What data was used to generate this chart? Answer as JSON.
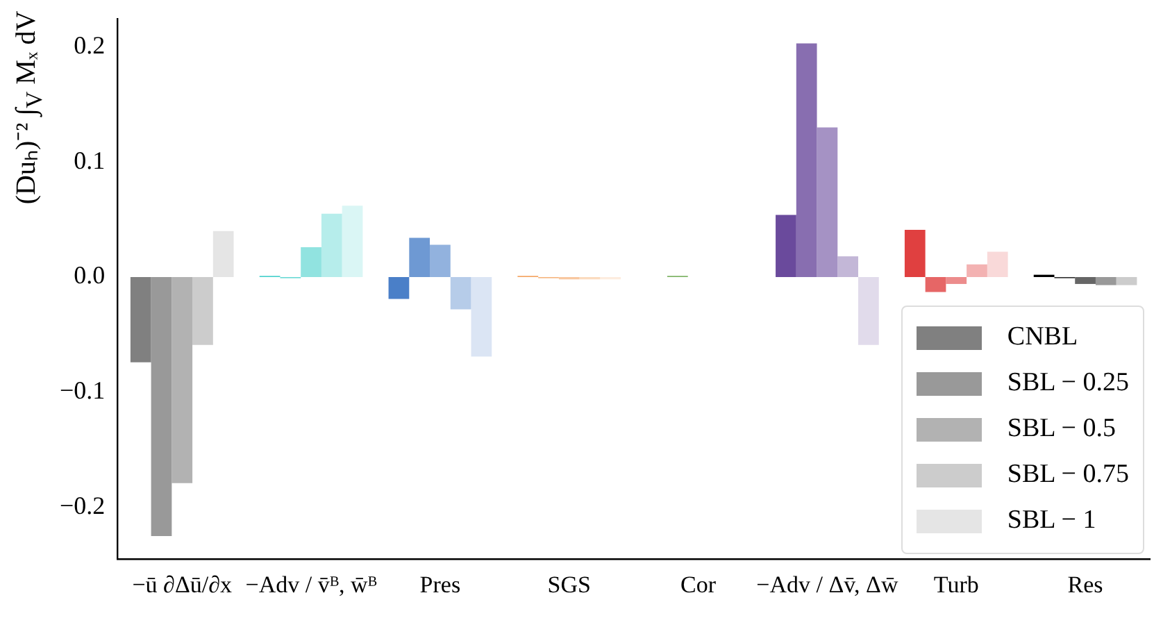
{
  "chart_data": {
    "type": "bar",
    "ylabel": "(Duₕ)⁻² ∫$_{V}$ Mₓ dV",
    "categories": [
      "−ū ∂Δū/∂x",
      "−Adv / v̄ᴮ, w̄ᴮ",
      "Pres",
      "SGS",
      "Cor",
      "−Adv / Δv̄, Δw̄",
      "Turb",
      "Res"
    ],
    "series": [
      {
        "name": "CNBL",
        "color": "#808080",
        "colors": [
          "#808080",
          "#48d1cc",
          "#4a7fc8",
          "#f4a460",
          "#5a9e3a",
          "#6a4a9c",
          "#e04040",
          "#000000"
        ],
        "values": [
          -0.074,
          0.001,
          -0.019,
          0.001,
          0,
          0.054,
          0.041,
          0.002
        ]
      },
      {
        "name": "SBL − 0.25",
        "color": "#999999",
        "colors": [
          "#999999",
          "#6ddad6",
          "#6e99d3",
          "#f6b680",
          "#7bb261",
          "#886eb0",
          "#e66666",
          "#333333"
        ],
        "values": [
          -0.225,
          -0.001,
          0.034,
          -0.001,
          0.001,
          0.203,
          -0.013,
          -0.001
        ]
      },
      {
        "name": "SBL − 0.5",
        "color": "#b2b2b2",
        "colors": [
          "#b2b2b2",
          "#91e3e0",
          "#92b2de",
          "#f8c8a0",
          "#9cc589",
          "#a592c4",
          "#ec8c8c",
          "#666666"
        ],
        "values": [
          -0.179,
          0.026,
          0.028,
          -0.002,
          0,
          0.13,
          -0.006,
          -0.006
        ]
      },
      {
        "name": "SBL − 0.75",
        "color": "#cccccc",
        "colors": [
          "#cccccc",
          "#b6edeb",
          "#b6cce9",
          "#fbdbbf",
          "#bdd8b0",
          "#c3b7d7",
          "#f3b2b2",
          "#999999"
        ],
        "values": [
          -0.059,
          0.055,
          -0.028,
          -0.002,
          0,
          0.018,
          0.011,
          -0.007
        ]
      },
      {
        "name": "SBL − 1",
        "color": "#e5e5e5",
        "colors": [
          "#e5e5e5",
          "#daf6f5",
          "#dbe5f4",
          "#fdeddf",
          "#deecd8",
          "#e1dbeb",
          "#f9d9d9",
          "#cccccc"
        ],
        "values": [
          0.04,
          0.062,
          -0.069,
          -0.002,
          0,
          -0.059,
          0.022,
          -0.007
        ]
      }
    ],
    "ylim": [
      -0.245,
      0.224
    ],
    "yticks": [
      {
        "value": -0.2,
        "label": "−0.2"
      },
      {
        "value": -0.1,
        "label": "−0.1"
      },
      {
        "value": 0,
        "label": "0.0"
      },
      {
        "value": 0.1,
        "label": "0.1"
      },
      {
        "value": 0.2,
        "label": "0.2"
      }
    ],
    "legend": "bottom right"
  }
}
